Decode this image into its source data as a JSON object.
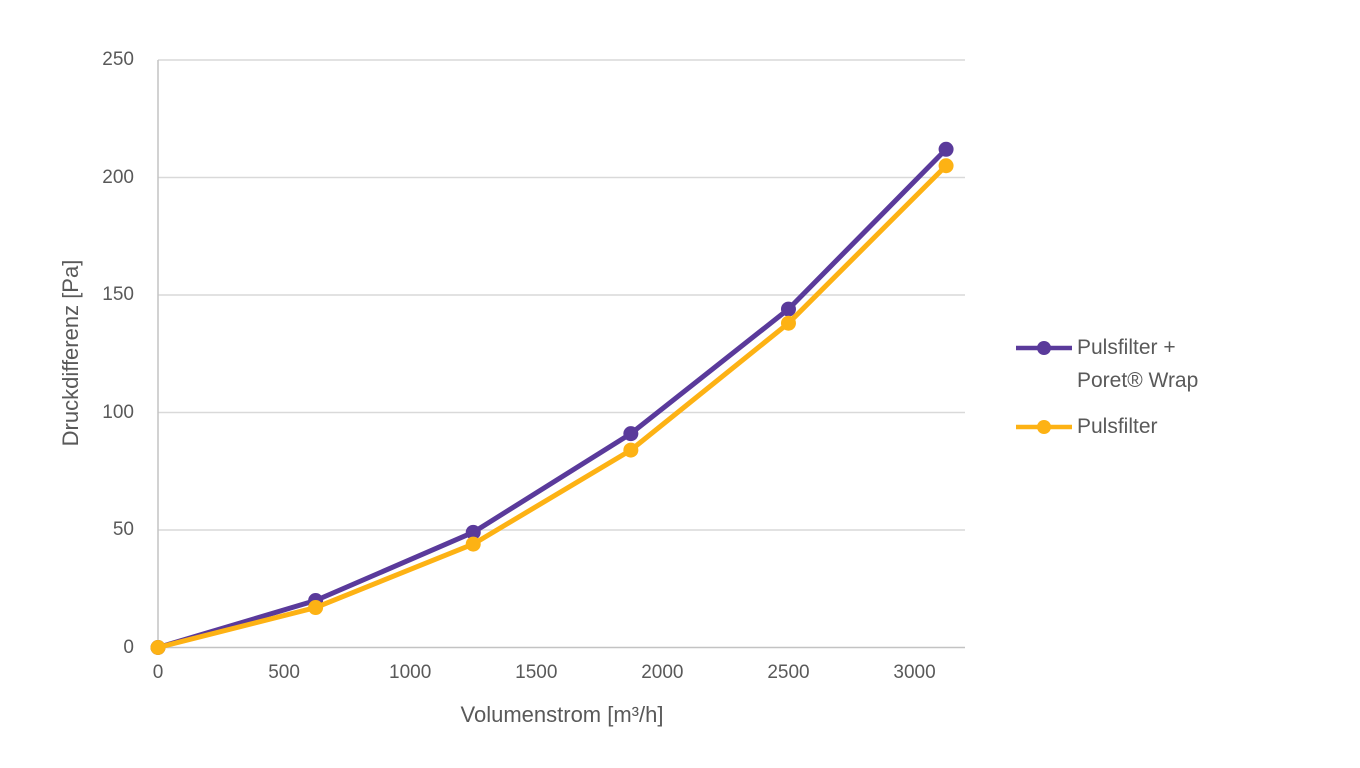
{
  "chart_data": {
    "type": "line",
    "title": "",
    "xlabel": "Volumenstrom [m³/h]",
    "ylabel": "Druckdifferenz [Pa]",
    "x": [
      0,
      625,
      1250,
      1875,
      2500,
      3125
    ],
    "series": [
      {
        "name": "Pulsfilter + Poret® Wrap",
        "legend_lines": [
          "Pulsfilter +",
          "Poret® Wrap"
        ],
        "color": "#5a3a9b",
        "values": [
          0,
          20,
          49,
          91,
          144,
          212
        ]
      },
      {
        "name": "Pulsfilter",
        "legend_lines": [
          "Pulsfilter"
        ],
        "color": "#fdb214",
        "values": [
          0,
          17,
          44,
          84,
          138,
          205
        ]
      }
    ],
    "x_ticks": [
      "0",
      "500",
      "1000",
      "1500",
      "2000",
      "2500",
      "3000"
    ],
    "y_ticks": [
      "0",
      "50",
      "100",
      "150",
      "200",
      "250"
    ],
    "xlim": [
      0,
      3200
    ],
    "ylim": [
      0,
      250
    ],
    "grid": "horizontal-only",
    "legend_position": "right-center",
    "marker": "circle",
    "line_width": 5,
    "marker_radius": 7.5,
    "colors": {
      "gridline": "#d9d9d9",
      "axis_line": "#c3c3c3",
      "text": "#595959",
      "background": "#ffffff"
    }
  }
}
